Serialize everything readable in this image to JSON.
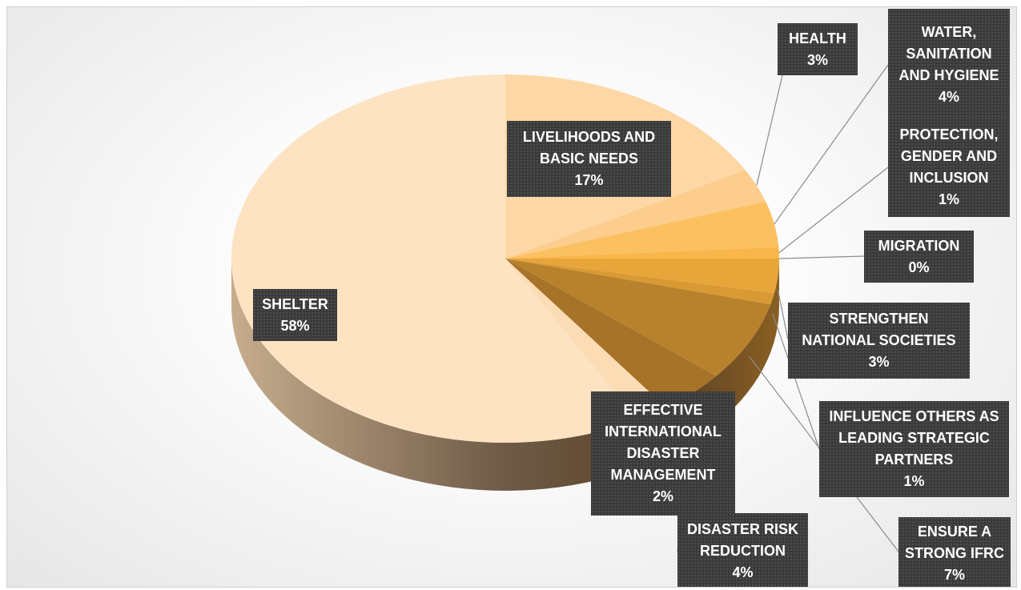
{
  "chart_data": {
    "type": "pie",
    "categories": [
      "LIVELIHOODS AND BASIC NEEDS",
      "HEALTH",
      "WATER, SANITATION AND HYGIENE",
      "PROTECTION, GENDER AND INCLUSION",
      "MIGRATION",
      "STRENGTHEN NATIONAL SOCIETIES",
      "INFLUENCE OTHERS AS LEADING STRATEGIC PARTNERS",
      "ENSURE A STRONG IFRC",
      "DISASTER RISK REDUCTION",
      "EFFECTIVE INTERNATIONAL DISASTER MANAGEMENT",
      "SHELTER"
    ],
    "values": [
      17,
      3,
      4,
      1,
      0,
      3,
      1,
      7,
      4,
      2,
      58
    ],
    "value_labels": [
      "17%",
      "3%",
      "4%",
      "1%",
      "0%",
      "3%",
      "1%",
      "7%",
      "4%",
      "2%",
      "58%"
    ],
    "colors": [
      "#fdd8a6",
      "#fccd8c",
      "#fbc060",
      "#f9b64a",
      "#f3ae40",
      "#e8a53a",
      "#d99a33",
      "#b8822c",
      "#a67328",
      "#fbdcb4",
      "#fde3c1"
    ]
  }
}
